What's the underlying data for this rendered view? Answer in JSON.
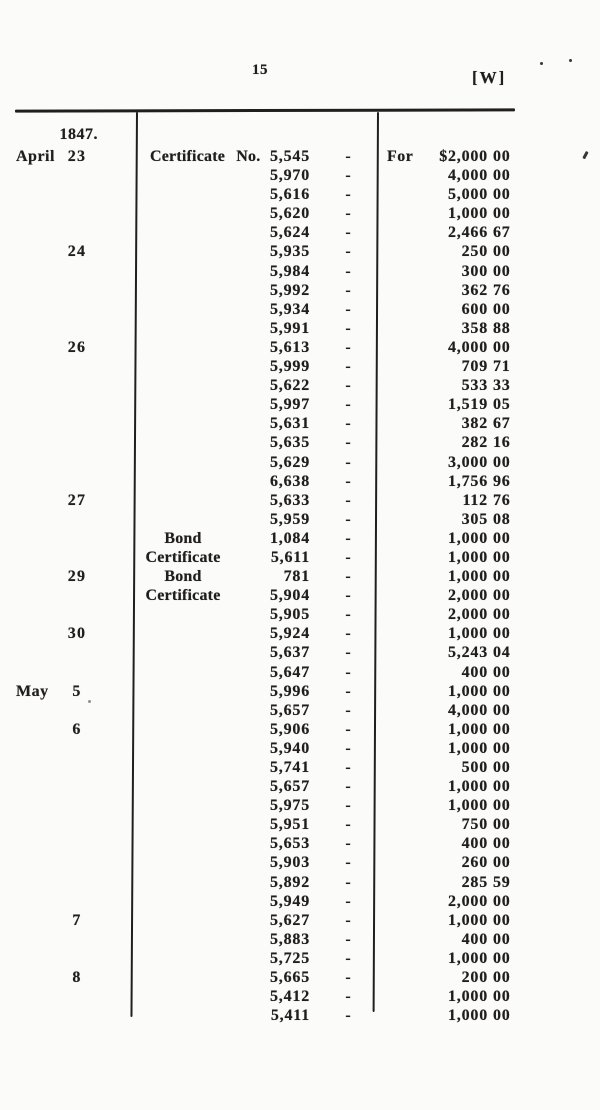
{
  "page": {
    "number": "15",
    "corner_mark": "[W]"
  },
  "colors": {
    "ink": "#211f1c",
    "paper": "#fbfbf9"
  },
  "ledger": {
    "year_heading": "1847.",
    "dash_glyph": "-",
    "rows": [
      {
        "month": "April",
        "day": "23",
        "prefix": "Certificate No.",
        "number": "5,545",
        "amount_prefix": "For",
        "currency": "$",
        "dollars": "2,000",
        "cents": "00"
      },
      {
        "number": "5,970",
        "dollars": "4,000",
        "cents": "00"
      },
      {
        "number": "5,616",
        "dollars": "5,000",
        "cents": "00"
      },
      {
        "number": "5,620",
        "dollars": "1,000",
        "cents": "00"
      },
      {
        "number": "5,624",
        "dollars": "2,466",
        "cents": "67"
      },
      {
        "day": "24",
        "number": "5,935",
        "dollars": "250",
        "cents": "00"
      },
      {
        "number": "5,984",
        "dollars": "300",
        "cents": "00"
      },
      {
        "number": "5,992",
        "dollars": "362",
        "cents": "76"
      },
      {
        "number": "5,934",
        "dollars": "600",
        "cents": "00"
      },
      {
        "number": "5,991",
        "dollars": "358",
        "cents": "88"
      },
      {
        "day": "26",
        "number": "5,613",
        "dollars": "4,000",
        "cents": "00"
      },
      {
        "number": "5,999",
        "dollars": "709",
        "cents": "71"
      },
      {
        "number": "5,622",
        "dollars": "533",
        "cents": "33"
      },
      {
        "number": "5,997",
        "dollars": "1,519",
        "cents": "05"
      },
      {
        "number": "5,631",
        "dollars": "382",
        "cents": "67"
      },
      {
        "number": "5,635",
        "dollars": "282",
        "cents": "16"
      },
      {
        "number": "5,629",
        "dollars": "3,000",
        "cents": "00"
      },
      {
        "number": "6,638",
        "dollars": "1,756",
        "cents": "96"
      },
      {
        "day": "27",
        "number": "5,633",
        "dollars": "112",
        "cents": "76"
      },
      {
        "number": "5,959",
        "dollars": "305",
        "cents": "08"
      },
      {
        "label": "Bond",
        "number": "1,084",
        "dollars": "1,000",
        "cents": "00"
      },
      {
        "label": "Certificate",
        "number": "5,611",
        "dollars": "1,000",
        "cents": "00"
      },
      {
        "day": "29",
        "label": "Bond",
        "number": "781",
        "dollars": "1,000",
        "cents": "00"
      },
      {
        "label": "Certificate",
        "number": "5,904",
        "dollars": "2,000",
        "cents": "00"
      },
      {
        "number": "5,905",
        "dollars": "2,000",
        "cents": "00"
      },
      {
        "day": "30",
        "number": "5,924",
        "dollars": "1,000",
        "cents": "00"
      },
      {
        "number": "5,637",
        "dollars": "5,243",
        "cents": "04"
      },
      {
        "number": "5,647",
        "dollars": "400",
        "cents": "00"
      },
      {
        "month": "May",
        "day": "5",
        "number": "5,996",
        "dollars": "1,000",
        "cents": "00"
      },
      {
        "number": "5,657",
        "dollars": "4,000",
        "cents": "00"
      },
      {
        "day": "6",
        "number": "5,906",
        "dollars": "1,000",
        "cents": "00"
      },
      {
        "number": "5,940",
        "dollars": "1,000",
        "cents": "00"
      },
      {
        "number": "5,741",
        "dollars": "500",
        "cents": "00"
      },
      {
        "number": "5,657",
        "dollars": "1,000",
        "cents": "00"
      },
      {
        "number": "5,975",
        "dollars": "1,000",
        "cents": "00"
      },
      {
        "number": "5,951",
        "dollars": "750",
        "cents": "00"
      },
      {
        "number": "5,653",
        "dollars": "400",
        "cents": "00"
      },
      {
        "number": "5,903",
        "dollars": "260",
        "cents": "00"
      },
      {
        "number": "5,892",
        "dollars": "285",
        "cents": "59"
      },
      {
        "number": "5,949",
        "dollars": "2,000",
        "cents": "00"
      },
      {
        "day": "7",
        "number": "5,627",
        "dollars": "1,000",
        "cents": "00"
      },
      {
        "number": "5,883",
        "dollars": "400",
        "cents": "00"
      },
      {
        "number": "5,725",
        "dollars": "1,000",
        "cents": "00"
      },
      {
        "day": "8",
        "number": "5,665",
        "dollars": "200",
        "cents": "00"
      },
      {
        "number": "5,412",
        "dollars": "1,000",
        "cents": "00"
      },
      {
        "number": "5,411",
        "dollars": "1,000",
        "cents": "00"
      }
    ]
  }
}
